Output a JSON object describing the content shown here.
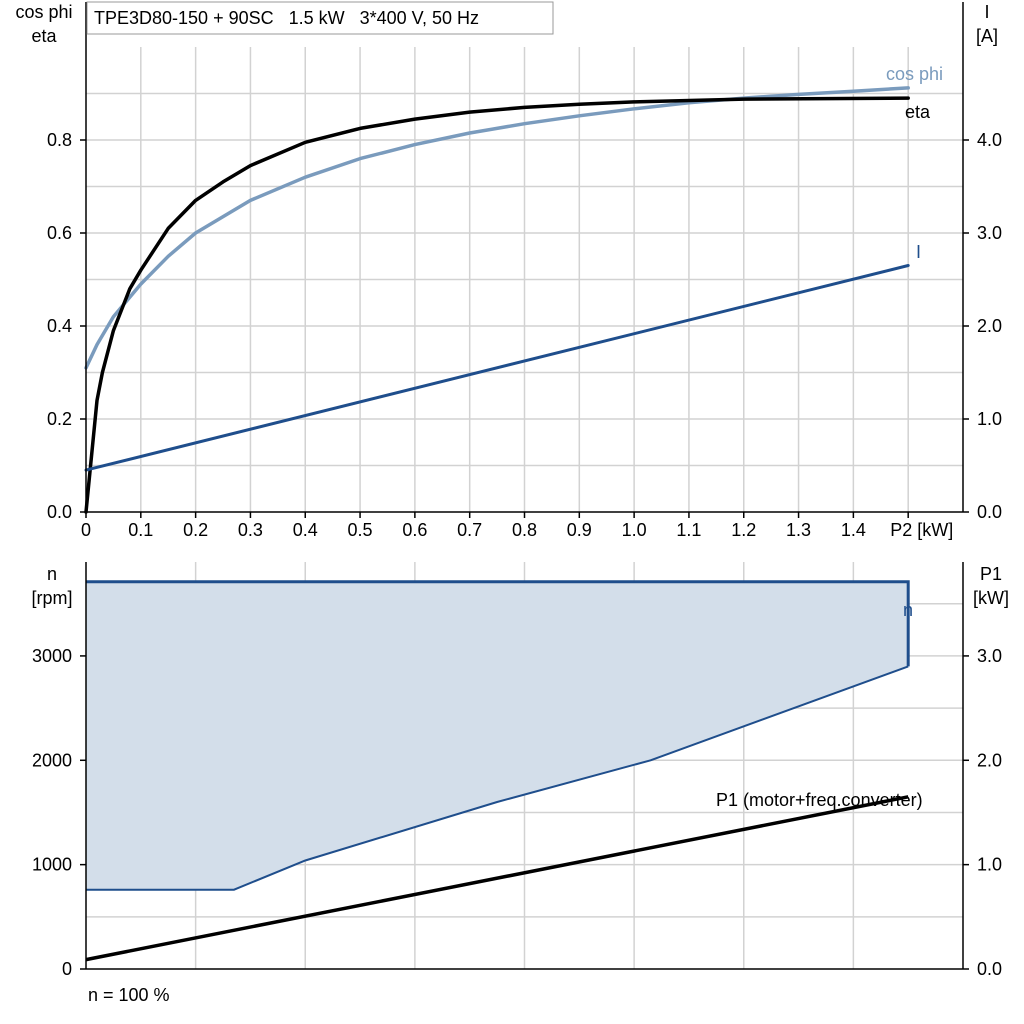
{
  "chart_data": [
    {
      "type": "line",
      "title": "TPE3D80-150 + 90SC   1.5 kW   3*400 V, 50 Hz",
      "ylabel_left": [
        "cos phi",
        "eta"
      ],
      "ylabel_right": [
        "I",
        "[A]"
      ],
      "xlabel": "P2 [kW]",
      "xlim": [
        0,
        1.6
      ],
      "ylim_left": [
        0,
        1.0
      ],
      "ylim_right": [
        0,
        5.0
      ],
      "x_ticks": [
        "0",
        "0.1",
        "0.2",
        "0.3",
        "0.4",
        "0.5",
        "0.6",
        "0.7",
        "0.8",
        "0.9",
        "1.0",
        "1.1",
        "1.2",
        "1.3",
        "1.4",
        "P2 [kW]"
      ],
      "y_ticks_left": [
        "0.0",
        "0.2",
        "0.4",
        "0.6",
        "0.8"
      ],
      "y_ticks_right": [
        "0.0",
        "1.0",
        "2.0",
        "3.0",
        "4.0"
      ],
      "grid": true,
      "series": [
        {
          "name": "cos phi",
          "color": "#7a9bbd",
          "axis": "left",
          "x": [
            0,
            0.02,
            0.05,
            0.1,
            0.15,
            0.2,
            0.3,
            0.4,
            0.5,
            0.6,
            0.7,
            0.8,
            0.9,
            1.0,
            1.1,
            1.2,
            1.3,
            1.4,
            1.5
          ],
          "y": [
            0.31,
            0.36,
            0.42,
            0.49,
            0.55,
            0.6,
            0.67,
            0.72,
            0.76,
            0.79,
            0.815,
            0.835,
            0.852,
            0.867,
            0.88,
            0.89,
            0.898,
            0.905,
            0.912
          ]
        },
        {
          "name": "eta",
          "color": "#000000",
          "axis": "left",
          "x": [
            0,
            0.01,
            0.02,
            0.03,
            0.05,
            0.08,
            0.1,
            0.15,
            0.2,
            0.25,
            0.3,
            0.4,
            0.5,
            0.6,
            0.7,
            0.8,
            0.9,
            1.0,
            1.2,
            1.5
          ],
          "y": [
            0.0,
            0.12,
            0.24,
            0.3,
            0.39,
            0.48,
            0.52,
            0.61,
            0.67,
            0.71,
            0.745,
            0.795,
            0.825,
            0.845,
            0.86,
            0.87,
            0.877,
            0.882,
            0.888,
            0.89
          ]
        },
        {
          "name": "I",
          "color": "#1f4e8c",
          "axis": "right",
          "x": [
            0,
            1.5
          ],
          "y": [
            0.45,
            2.65
          ]
        }
      ]
    },
    {
      "type": "area",
      "ylabel_left": [
        "n",
        "[rpm]"
      ],
      "ylabel_right": [
        "P1",
        "[kW]"
      ],
      "xlim": [
        0,
        1.6
      ],
      "ylim_left": [
        0,
        3900
      ],
      "ylim_right": [
        0,
        3.9
      ],
      "y_ticks_left": [
        "0",
        "1000",
        "2000",
        "3000"
      ],
      "y_ticks_right": [
        "0.0",
        "1.0",
        "2.0",
        "3.0"
      ],
      "grid": true,
      "footnote": "n = 100 %",
      "series": [
        {
          "name": "n",
          "color": "#1f4e8c",
          "fill": "#d3deea",
          "axis": "left",
          "x_upper": [
            0,
            1.5,
            1.5
          ],
          "y_upper": [
            3710,
            3710,
            2900
          ],
          "x_lower": [
            0,
            0.27,
            0.4,
            0.75,
            1.03,
            1.5
          ],
          "y_lower": [
            760,
            760,
            1040,
            1600,
            2000,
            2900
          ]
        },
        {
          "name": "P1 (motor+freq.converter)",
          "color": "#000000",
          "axis": "right",
          "x": [
            0,
            1.5
          ],
          "y": [
            0.09,
            1.65
          ]
        }
      ]
    }
  ]
}
